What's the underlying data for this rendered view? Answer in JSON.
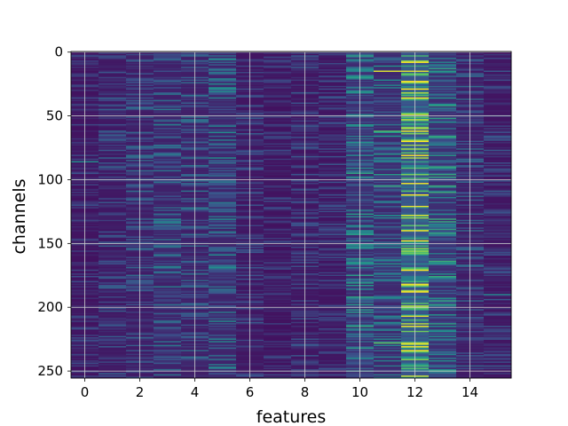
{
  "chart_data": {
    "type": "heatmap",
    "title": "",
    "xlabel": "features",
    "ylabel": "channels",
    "n_features": 16,
    "n_channels": 256,
    "x_range": [
      -0.5,
      15.5
    ],
    "y_range": [
      -0.5,
      255.5
    ],
    "y_inverted": true,
    "x_ticks": [
      0,
      2,
      4,
      6,
      8,
      10,
      12,
      14
    ],
    "y_ticks": [
      0,
      50,
      100,
      150,
      200,
      250
    ],
    "grid": true,
    "colormap": "viridis",
    "feature_mean_intensity": [
      0.12,
      0.16,
      0.18,
      0.22,
      0.2,
      0.24,
      0.14,
      0.12,
      0.14,
      0.13,
      0.28,
      0.26,
      0.55,
      0.3,
      0.18,
      0.14
    ],
    "hot_cells": [
      {
        "feature": 11,
        "channel": 15,
        "value": 0.95
      },
      {
        "feature": 12,
        "channel": 15,
        "value": 0.95
      },
      {
        "feature": 12,
        "channel": 24,
        "value": 0.85
      },
      {
        "feature": 11,
        "channel": 62,
        "value": 0.7
      },
      {
        "feature": 12,
        "channel": 64,
        "value": 0.8
      },
      {
        "feature": 12,
        "channel": 128,
        "value": 0.95
      },
      {
        "feature": 11,
        "channel": 105,
        "value": 0.6
      },
      {
        "feature": 12,
        "channel": 180,
        "value": 0.65
      },
      {
        "feature": 11,
        "channel": 228,
        "value": 0.75
      },
      {
        "feature": 12,
        "channel": 248,
        "value": 0.7
      },
      {
        "feature": 0,
        "channel": 86,
        "value": 0.5
      },
      {
        "feature": 15,
        "channel": 190,
        "value": 0.45
      }
    ]
  }
}
